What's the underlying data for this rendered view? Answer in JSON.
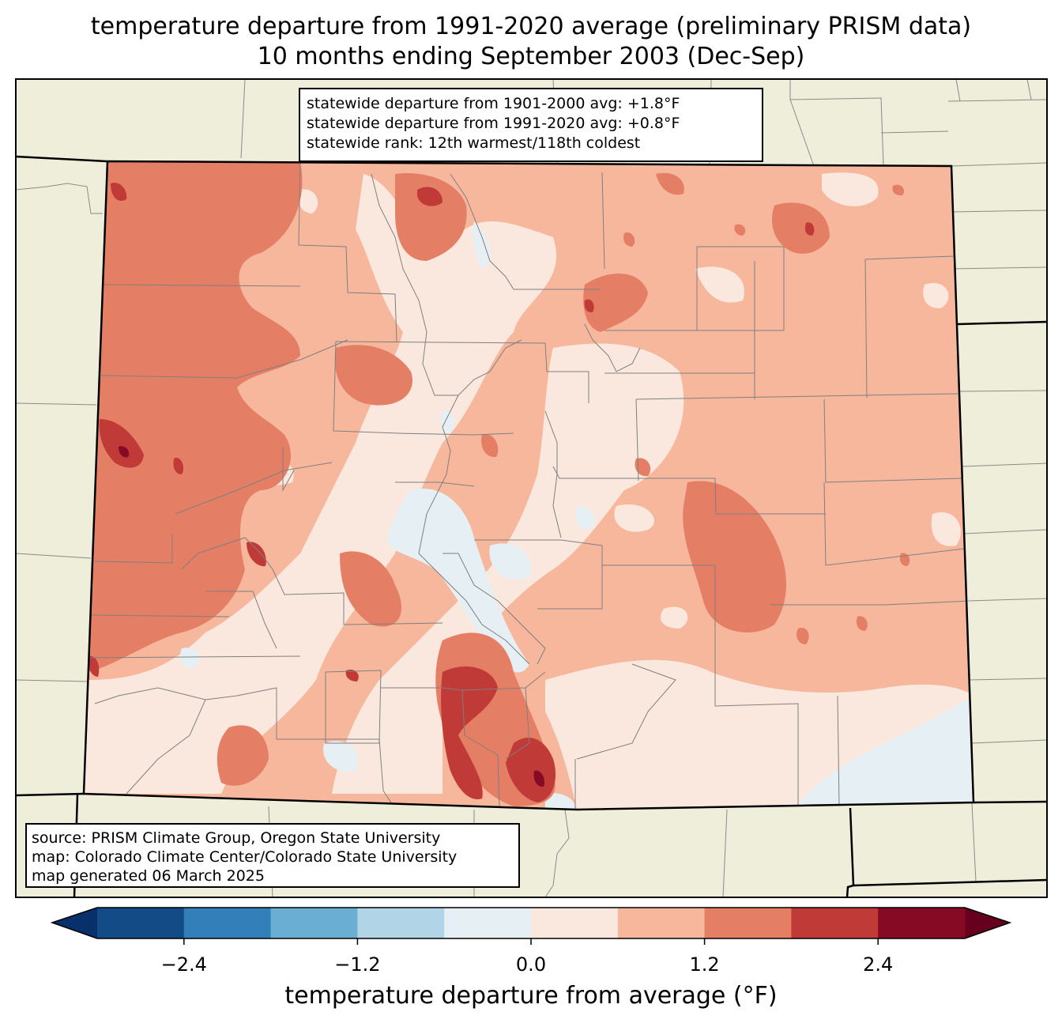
{
  "title": {
    "line1": "temperature departure from 1991-2020 average (preliminary PRISM data)",
    "line2": "10 months ending September 2003 (Dec-Sep)"
  },
  "stats": {
    "line1": "statewide departure from 1901-2000 avg: +1.8°F",
    "line2": "statewide departure from 1991-2020 avg: +0.8°F",
    "line3": "statewide rank: 12th warmest/118th coldest"
  },
  "source": {
    "line1": "source: PRISM Climate Group, Oregon State University",
    "line2": "map: Colorado Climate Center/Colorado State University",
    "line3": "map generated 06 March 2025"
  },
  "colorbar": {
    "label": "temperature departure from average (°F)",
    "ticks": [
      "−2.4",
      "−1.2",
      "0.0",
      "1.2",
      "2.4"
    ],
    "levels": [
      -3.0,
      -2.4,
      -1.8,
      -1.2,
      -0.6,
      0.0,
      0.6,
      1.2,
      1.8,
      2.4,
      3.0
    ],
    "colors": [
      "#08306b",
      "#134b87",
      "#327fba",
      "#6aaed3",
      "#b1d5e7",
      "#e6eff4",
      "#fae8de",
      "#f6b79c",
      "#e47f65",
      "#c03a37",
      "#870a24",
      "#67001f"
    ]
  },
  "colors": {
    "background": "#efeedb",
    "state_fill": "#f6b79c"
  }
}
